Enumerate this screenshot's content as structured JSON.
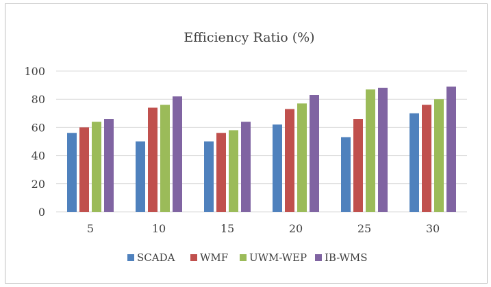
{
  "chart_data": {
    "type": "bar",
    "title": "Efficiency Ratio (%)",
    "xlabel": "",
    "ylabel": "",
    "categories": [
      "5",
      "10",
      "15",
      "20",
      "25",
      "30"
    ],
    "ylim": [
      0,
      100
    ],
    "yticks": [
      "0",
      "20",
      "40",
      "60",
      "80",
      "100"
    ],
    "grid": true,
    "legend_position": "bottom",
    "series": [
      {
        "name": "SCADA",
        "color": "#4f81bd",
        "values": [
          56,
          50,
          50,
          62,
          53,
          70
        ]
      },
      {
        "name": "WMF",
        "color": "#c0504d",
        "values": [
          60,
          74,
          56,
          73,
          66,
          76
        ]
      },
      {
        "name": "UWM-WEP",
        "color": "#9bbb59",
        "values": [
          64,
          76,
          58,
          77,
          87,
          80
        ]
      },
      {
        "name": "IB-WMS",
        "color": "#8064a2",
        "values": [
          66,
          82,
          64,
          83,
          88,
          89
        ]
      }
    ]
  }
}
